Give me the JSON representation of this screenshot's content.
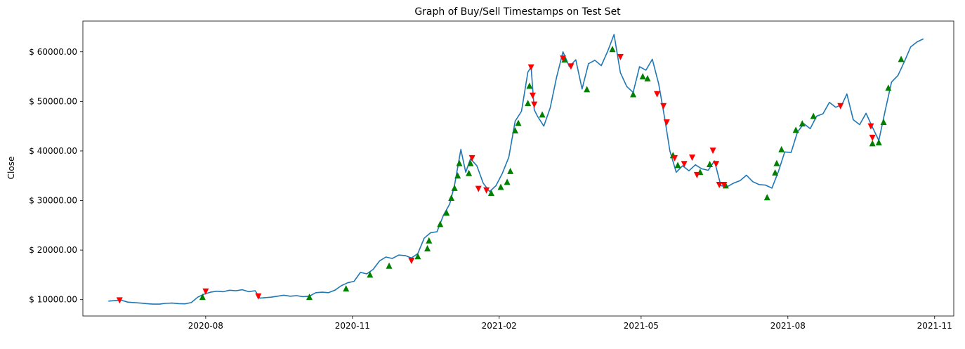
{
  "chart_data": {
    "type": "line",
    "title": "Graph of Buy/Sell Timestamps on Test Set",
    "xlabel": "",
    "ylabel": "Close",
    "x_ticks": [
      "2020-08",
      "2020-11",
      "2021-02",
      "2021-05",
      "2021-08",
      "2021-11"
    ],
    "x_tick_dates": [
      "2020-08-01",
      "2020-11-01",
      "2021-02-01",
      "2021-05-01",
      "2021-08-01",
      "2021-11-01"
    ],
    "y_ticks": [
      "$ 10000.00",
      "$ 20000.00",
      "$ 30000.00",
      "$ 40000.00",
      "$ 50000.00",
      "$ 60000.00"
    ],
    "y_tick_values": [
      10000,
      20000,
      30000,
      40000,
      50000,
      60000
    ],
    "xlim": [
      "2020-05-16",
      "2021-11-13"
    ],
    "ylim": [
      6700,
      66200
    ],
    "grid": false,
    "colors": {
      "line": "#1f77b4",
      "buy": "#008000",
      "sell": "#ff0000"
    },
    "series": [
      {
        "x": [
          "2020-06-01",
          "2020-06-05",
          "2020-06-09",
          "2020-06-13",
          "2020-06-17",
          "2020-06-21",
          "2020-06-25",
          "2020-06-29",
          "2020-07-03",
          "2020-07-07",
          "2020-07-11",
          "2020-07-15",
          "2020-07-19",
          "2020-07-23",
          "2020-07-27",
          "2020-07-31",
          "2020-08-04",
          "2020-08-08",
          "2020-08-12",
          "2020-08-16",
          "2020-08-20",
          "2020-08-24",
          "2020-08-28",
          "2020-09-01",
          "2020-09-04",
          "2020-09-07",
          "2020-09-11",
          "2020-09-15",
          "2020-09-19",
          "2020-09-23",
          "2020-09-27",
          "2020-10-01",
          "2020-10-05",
          "2020-10-09",
          "2020-10-13",
          "2020-10-17",
          "2020-10-21",
          "2020-10-25",
          "2020-10-29",
          "2020-11-02",
          "2020-11-06",
          "2020-11-10",
          "2020-11-14",
          "2020-11-18",
          "2020-11-22",
          "2020-11-26",
          "2020-11-30",
          "2020-12-04",
          "2020-12-08",
          "2020-12-12",
          "2020-12-16",
          "2020-12-20",
          "2020-12-24",
          "2020-12-28",
          "2021-01-01",
          "2021-01-04",
          "2021-01-08",
          "2021-01-11",
          "2021-01-14",
          "2021-01-18",
          "2021-01-22",
          "2021-01-26",
          "2021-01-30",
          "2021-02-03",
          "2021-02-07",
          "2021-02-11",
          "2021-02-15",
          "2021-02-19",
          "2021-02-21",
          "2021-02-23",
          "2021-02-25",
          "2021-03-01",
          "2021-03-05",
          "2021-03-09",
          "2021-03-13",
          "2021-03-17",
          "2021-03-21",
          "2021-03-25",
          "2021-03-29",
          "2021-04-02",
          "2021-04-06",
          "2021-04-10",
          "2021-04-14",
          "2021-04-18",
          "2021-04-22",
          "2021-04-26",
          "2021-04-30",
          "2021-05-04",
          "2021-05-08",
          "2021-05-12",
          "2021-05-16",
          "2021-05-19",
          "2021-05-23",
          "2021-05-27",
          "2021-05-31",
          "2021-06-04",
          "2021-06-08",
          "2021-06-12",
          "2021-06-16",
          "2021-06-20",
          "2021-06-24",
          "2021-06-28",
          "2021-07-02",
          "2021-07-06",
          "2021-07-10",
          "2021-07-14",
          "2021-07-18",
          "2021-07-22",
          "2021-07-26",
          "2021-07-30",
          "2021-08-03",
          "2021-08-07",
          "2021-08-11",
          "2021-08-15",
          "2021-08-19",
          "2021-08-23",
          "2021-08-27",
          "2021-08-31",
          "2021-09-04",
          "2021-09-07",
          "2021-09-11",
          "2021-09-15",
          "2021-09-19",
          "2021-09-23",
          "2021-09-27",
          "2021-10-01",
          "2021-10-05",
          "2021-10-09",
          "2021-10-13",
          "2021-10-17",
          "2021-10-21",
          "2021-10-25"
        ],
        "y": [
          9700,
          9800,
          9900,
          9500,
          9400,
          9300,
          9200,
          9100,
          9100,
          9250,
          9300,
          9200,
          9150,
          9400,
          10500,
          11100,
          11500,
          11700,
          11600,
          11900,
          11800,
          12000,
          11600,
          11800,
          10300,
          10400,
          10500,
          10700,
          10900,
          10700,
          10800,
          10600,
          10700,
          11400,
          11500,
          11400,
          11900,
          12800,
          13400,
          13700,
          15500,
          15200,
          16100,
          17800,
          18600,
          18300,
          19000,
          18900,
          18400,
          19300,
          22400,
          23500,
          23700,
          27000,
          29300,
          33100,
          40300,
          35700,
          38400,
          37000,
          33500,
          31800,
          33000,
          35500,
          38700,
          46000,
          48000,
          55900,
          56900,
          48300,
          47000,
          45000,
          48700,
          54900,
          60000,
          57000,
          58400,
          52500,
          57600,
          58300,
          57200,
          60100,
          63500,
          55800,
          53000,
          51800,
          57000,
          56300,
          58500,
          53500,
          46200,
          40000,
          35700,
          37000,
          36000,
          37200,
          36400,
          36100,
          38000,
          33000,
          32800,
          33500,
          34000,
          35100,
          33800,
          33200,
          33100,
          32500,
          35800,
          39800,
          39700,
          43800,
          45500,
          44500,
          47000,
          47500,
          49800,
          48800,
          49400,
          51500,
          46300,
          45300,
          47600,
          44800,
          42100,
          48100,
          53900,
          55200,
          58000,
          61000,
          62000,
          62600
        ]
      }
    ],
    "buy_markers": [
      {
        "x": "2020-07-30",
        "y": 10500
      },
      {
        "x": "2020-10-05",
        "y": 10500
      },
      {
        "x": "2020-10-28",
        "y": 12200
      },
      {
        "x": "2020-11-12",
        "y": 15000
      },
      {
        "x": "2020-11-24",
        "y": 16800
      },
      {
        "x": "2020-12-12",
        "y": 18700
      },
      {
        "x": "2020-12-18",
        "y": 20300
      },
      {
        "x": "2020-12-19",
        "y": 21900
      },
      {
        "x": "2020-12-26",
        "y": 25200
      },
      {
        "x": "2020-12-30",
        "y": 27500
      },
      {
        "x": "2021-01-02",
        "y": 30500
      },
      {
        "x": "2021-01-04",
        "y": 32500
      },
      {
        "x": "2021-01-06",
        "y": 35000
      },
      {
        "x": "2021-01-07",
        "y": 37500
      },
      {
        "x": "2021-01-13",
        "y": 35500
      },
      {
        "x": "2021-01-14",
        "y": 37500
      },
      {
        "x": "2021-01-27",
        "y": 31500
      },
      {
        "x": "2021-02-02",
        "y": 32700
      },
      {
        "x": "2021-02-06",
        "y": 33700
      },
      {
        "x": "2021-02-08",
        "y": 35900
      },
      {
        "x": "2021-02-11",
        "y": 44100
      },
      {
        "x": "2021-02-13",
        "y": 45600
      },
      {
        "x": "2021-02-19",
        "y": 49600
      },
      {
        "x": "2021-02-20",
        "y": 53100
      },
      {
        "x": "2021-02-28",
        "y": 47300
      },
      {
        "x": "2021-03-14",
        "y": 58400
      },
      {
        "x": "2021-03-28",
        "y": 52400
      },
      {
        "x": "2021-04-13",
        "y": 60500
      },
      {
        "x": "2021-04-26",
        "y": 51400
      },
      {
        "x": "2021-05-02",
        "y": 55000
      },
      {
        "x": "2021-05-05",
        "y": 54600
      },
      {
        "x": "2021-05-21",
        "y": 39100
      },
      {
        "x": "2021-05-24",
        "y": 37100
      },
      {
        "x": "2021-06-07",
        "y": 35700
      },
      {
        "x": "2021-06-13",
        "y": 37300
      },
      {
        "x": "2021-06-23",
        "y": 33000
      },
      {
        "x": "2021-07-19",
        "y": 30600
      },
      {
        "x": "2021-07-24",
        "y": 35600
      },
      {
        "x": "2021-07-25",
        "y": 37500
      },
      {
        "x": "2021-07-28",
        "y": 40300
      },
      {
        "x": "2021-08-06",
        "y": 44200
      },
      {
        "x": "2021-08-10",
        "y": 45500
      },
      {
        "x": "2021-08-17",
        "y": 47000
      },
      {
        "x": "2021-09-23",
        "y": 41500
      },
      {
        "x": "2021-09-27",
        "y": 41700
      },
      {
        "x": "2021-09-30",
        "y": 45800
      },
      {
        "x": "2021-10-03",
        "y": 52700
      },
      {
        "x": "2021-10-11",
        "y": 58500
      }
    ],
    "sell_markers": [
      {
        "x": "2020-06-08",
        "y": 9900
      },
      {
        "x": "2020-08-01",
        "y": 11700
      },
      {
        "x": "2020-09-03",
        "y": 10700
      },
      {
        "x": "2020-12-08",
        "y": 17900
      },
      {
        "x": "2021-01-15",
        "y": 38600
      },
      {
        "x": "2021-01-19",
        "y": 32400
      },
      {
        "x": "2021-01-24",
        "y": 32100
      },
      {
        "x": "2021-02-21",
        "y": 56900
      },
      {
        "x": "2021-02-22",
        "y": 51200
      },
      {
        "x": "2021-02-23",
        "y": 49400
      },
      {
        "x": "2021-03-13",
        "y": 58700
      },
      {
        "x": "2021-03-18",
        "y": 57100
      },
      {
        "x": "2021-04-18",
        "y": 59000
      },
      {
        "x": "2021-05-11",
        "y": 51500
      },
      {
        "x": "2021-05-15",
        "y": 49100
      },
      {
        "x": "2021-05-17",
        "y": 45800
      },
      {
        "x": "2021-05-22",
        "y": 38600
      },
      {
        "x": "2021-05-28",
        "y": 37400
      },
      {
        "x": "2021-06-02",
        "y": 38700
      },
      {
        "x": "2021-06-05",
        "y": 35200
      },
      {
        "x": "2021-06-15",
        "y": 40100
      },
      {
        "x": "2021-06-17",
        "y": 37400
      },
      {
        "x": "2021-06-19",
        "y": 33200
      },
      {
        "x": "2021-06-22",
        "y": 33200
      },
      {
        "x": "2021-09-03",
        "y": 49100
      },
      {
        "x": "2021-09-22",
        "y": 45000
      },
      {
        "x": "2021-09-23",
        "y": 42700
      }
    ]
  }
}
